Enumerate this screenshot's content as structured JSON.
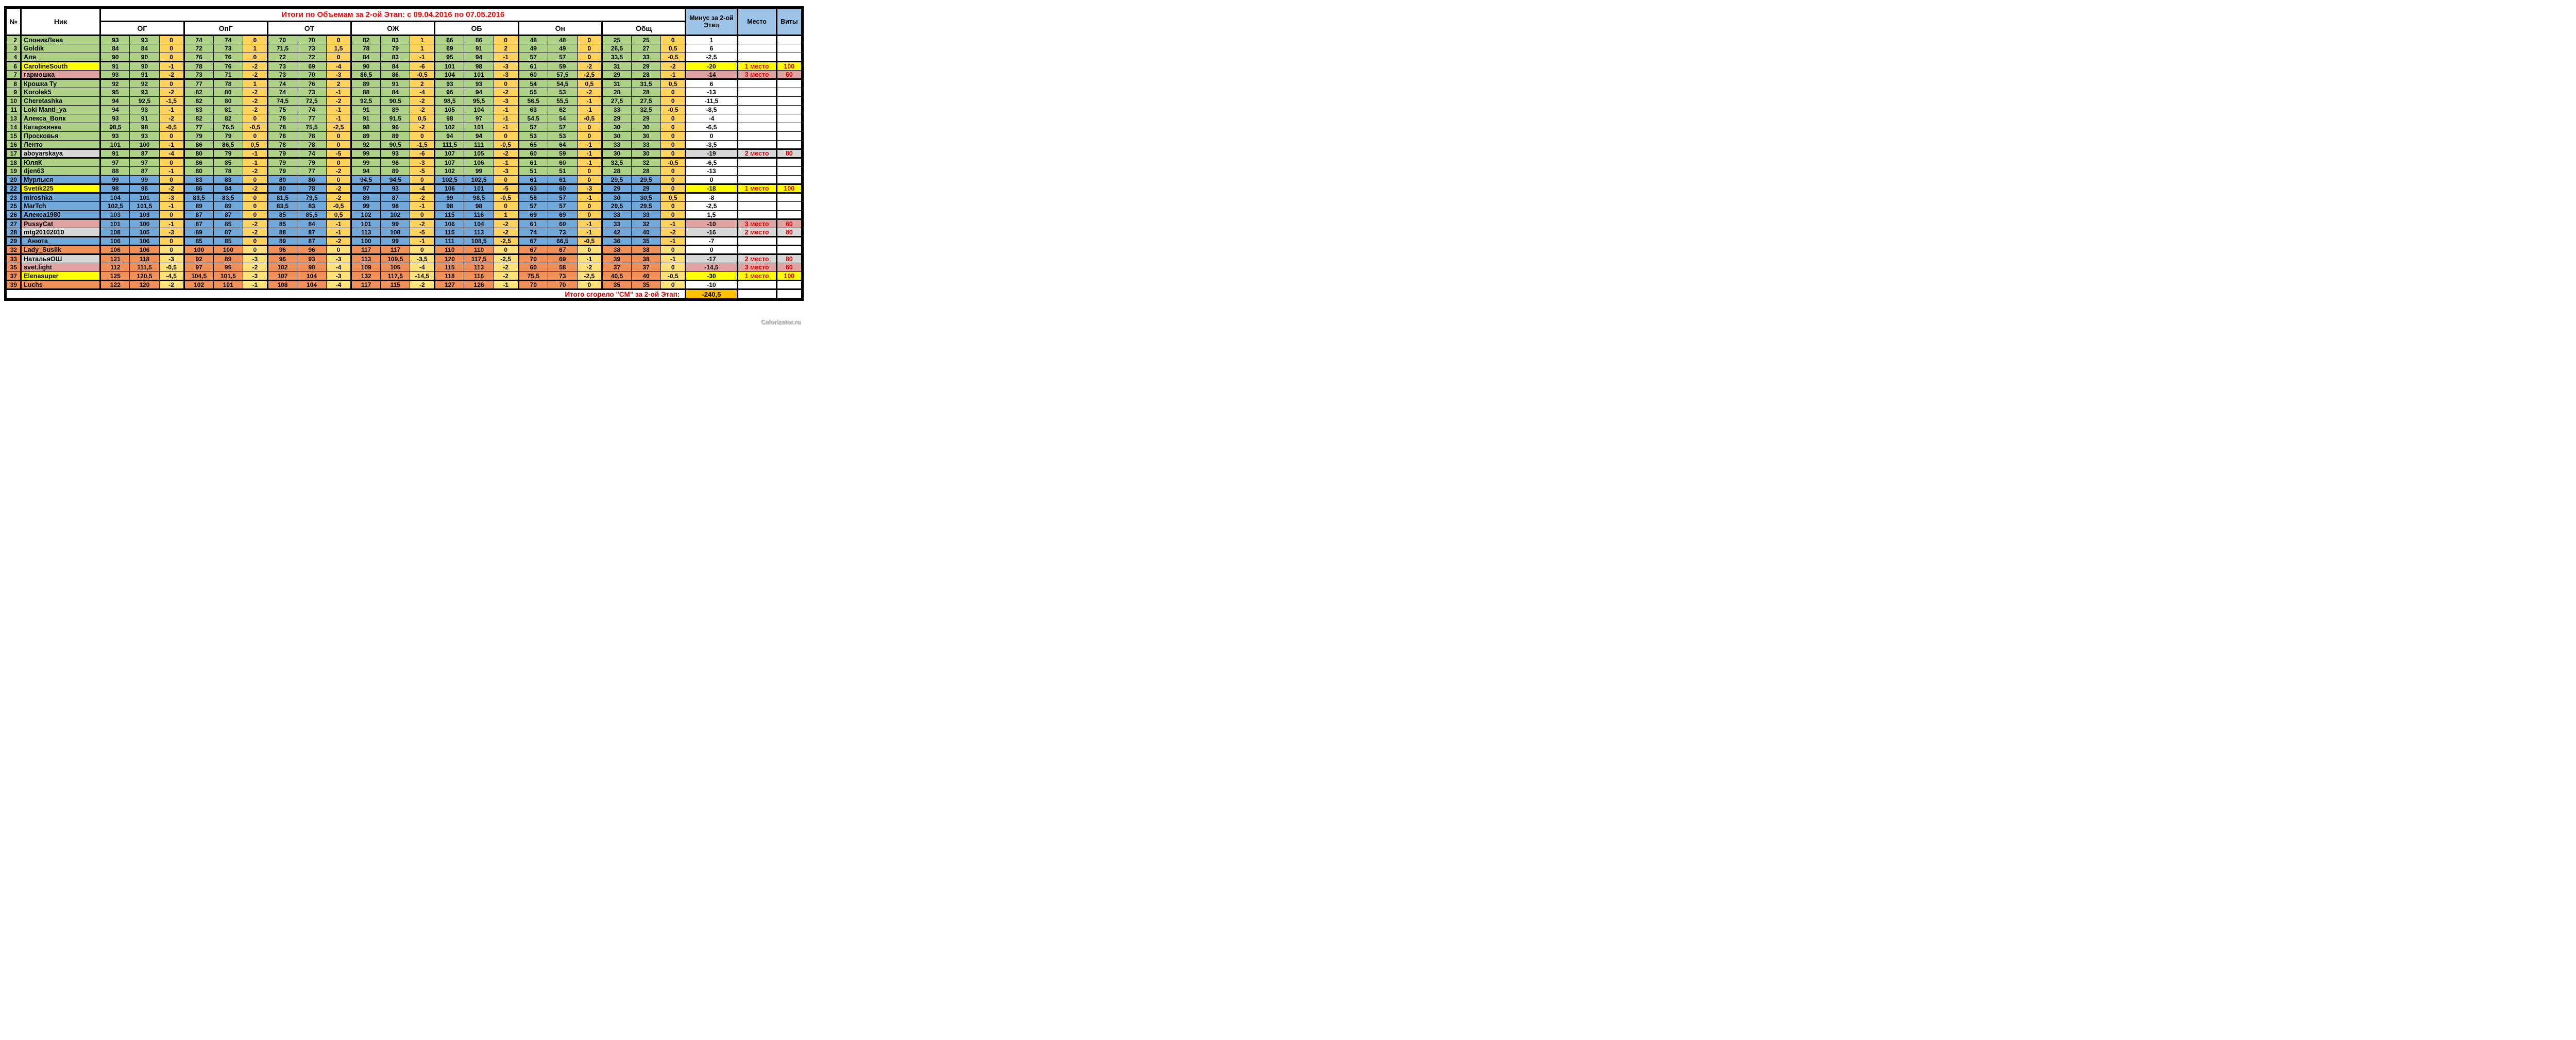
{
  "title": "Итоги по Объемам за 2-ой Этап: с  09.04.2016 по 07.05.2016",
  "columns": {
    "num": "№",
    "nick": "Ник",
    "groups": [
      "ОГ",
      "ОпГ",
      "ОТ",
      "ОЖ",
      "ОБ",
      "Он",
      "Общ"
    ],
    "minus": "Минус за 2-ой Этап",
    "place": "Место",
    "vity": "Виты"
  },
  "colors": {
    "band_green": "#ADD285",
    "band_blue": "#72A9DB",
    "band_orange": "#F1915A",
    "diff_yellow": "#FFD35C",
    "highlight_yellow": "#FFFF00",
    "highlight_pink": "#E2A3A3",
    "highlight_gray": "#D8D8D8",
    "header_blue": "#9DC3E6",
    "title_red": "#FF0000",
    "place_red": "#DD0000",
    "total_orange": "#FFC000"
  },
  "rows": [
    {
      "num": "2",
      "nick": "СлоникЛена",
      "band": "green",
      "hatch": 0,
      "thick": false,
      "v": [
        "93",
        "93",
        "0",
        "74",
        "74",
        "0",
        "70",
        "70",
        "0",
        "82",
        "83",
        "1",
        "86",
        "86",
        "0",
        "48",
        "48",
        "0",
        "25",
        "25",
        "0"
      ],
      "minus": "1",
      "minusbg": "",
      "place": "",
      "vity": ""
    },
    {
      "num": "3",
      "nick": "Goldik",
      "band": "green",
      "hatch": 2,
      "thick": false,
      "v": [
        "84",
        "84",
        "0",
        "72",
        "73",
        "1",
        "71,5",
        "73",
        "1,5",
        "78",
        "79",
        "1",
        "89",
        "91",
        "2",
        "49",
        "49",
        "0",
        "26,5",
        "27",
        "0,5"
      ],
      "minus": "6",
      "minusbg": "",
      "place": "",
      "vity": ""
    },
    {
      "num": "4",
      "nick": "Аля_",
      "band": "green",
      "hatch": 0,
      "thick": true,
      "v": [
        "90",
        "90",
        "0",
        "76",
        "76",
        "0",
        "72",
        "72",
        "0",
        "84",
        "83",
        "-1",
        "95",
        "94",
        "-1",
        "57",
        "57",
        "0",
        "33,5",
        "33",
        "-0,5"
      ],
      "minus": "-2,5",
      "minusbg": "",
      "place": "",
      "vity": ""
    },
    {
      "num": "6",
      "nick": "CarolineSouth",
      "band": "green",
      "nickbg": "yellow",
      "hatch": 2,
      "thick": false,
      "v": [
        "91",
        "90",
        "-1",
        "78",
        "76",
        "-2",
        "73",
        "69",
        "-4",
        "90",
        "84",
        "-6",
        "101",
        "98",
        "-3",
        "61",
        "59",
        "-2",
        "31",
        "29",
        "-2"
      ],
      "minus": "-20",
      "minusbg": "yellow",
      "place": "1 место",
      "vity": "100"
    },
    {
      "num": "7",
      "nick": "гармошка",
      "band": "green",
      "nickbg": "pink",
      "hatch": 0,
      "thick": true,
      "v": [
        "93",
        "91",
        "-2",
        "73",
        "71",
        "-2",
        "73",
        "70",
        "-3",
        "86,5",
        "86",
        "-0,5",
        "104",
        "101",
        "-3",
        "60",
        "57,5",
        "-2,5",
        "29",
        "28",
        "-1"
      ],
      "minus": "-14",
      "minusbg": "pink",
      "place": "3 место",
      "vity": "60"
    },
    {
      "num": "8",
      "nick": "Крошка Ту",
      "band": "green",
      "hatch": 0,
      "thick": false,
      "v": [
        "92",
        "92",
        "0",
        "77",
        "78",
        "1",
        "74",
        "76",
        "2",
        "89",
        "91",
        "2",
        "93",
        "93",
        "0",
        "54",
        "54,5",
        "0,5",
        "31",
        "31,5",
        "0,5"
      ],
      "minus": "6",
      "minusbg": "",
      "place": "",
      "vity": ""
    },
    {
      "num": "9",
      "nick": "Korolek5",
      "band": "green",
      "hatch": 0,
      "thick": false,
      "v": [
        "95",
        "93",
        "-2",
        "82",
        "80",
        "-2",
        "74",
        "73",
        "-1",
        "88",
        "84",
        "-4",
        "96",
        "94",
        "-2",
        "55",
        "53",
        "-2",
        "28",
        "28",
        "0"
      ],
      "minus": "-13",
      "minusbg": "",
      "place": "",
      "vity": ""
    },
    {
      "num": "10",
      "nick": "Cheretashka",
      "band": "green",
      "hatch": 0,
      "thick": false,
      "v": [
        "94",
        "92,5",
        "-1,5",
        "82",
        "80",
        "-2",
        "74,5",
        "72,5",
        "-2",
        "92,5",
        "90,5",
        "-2",
        "98,5",
        "95,5",
        "-3",
        "56,5",
        "55,5",
        "-1",
        "27,5",
        "27,5",
        "0"
      ],
      "minus": "-11,5",
      "minusbg": "",
      "place": "",
      "vity": ""
    },
    {
      "num": "11",
      "nick": "Loki Manti_ya",
      "band": "green",
      "hatch": 0,
      "thick": false,
      "v": [
        "94",
        "93",
        "-1",
        "83",
        "81",
        "-2",
        "75",
        "74",
        "-1",
        "91",
        "89",
        "-2",
        "105",
        "104",
        "-1",
        "63",
        "62",
        "-1",
        "33",
        "32,5",
        "-0,5"
      ],
      "minus": "-8,5",
      "minusbg": "",
      "place": "",
      "vity": ""
    },
    {
      "num": "13",
      "nick": "Алекса_Волк",
      "band": "green",
      "hatch": 0,
      "thick": false,
      "v": [
        "93",
        "91",
        "-2",
        "82",
        "82",
        "0",
        "78",
        "77",
        "-1",
        "91",
        "91,5",
        "0,5",
        "98",
        "97",
        "-1",
        "54,5",
        "54",
        "-0,5",
        "29",
        "29",
        "0"
      ],
      "minus": "-4",
      "minusbg": "",
      "place": "",
      "vity": ""
    },
    {
      "num": "14",
      "nick": "Катаржинка",
      "band": "green",
      "hatch": 0,
      "thick": false,
      "v": [
        "98,5",
        "98",
        "-0,5",
        "77",
        "76,5",
        "-0,5",
        "78",
        "75,5",
        "-2,5",
        "98",
        "96",
        "-2",
        "102",
        "101",
        "-1",
        "57",
        "57",
        "0",
        "30",
        "30",
        "0"
      ],
      "minus": "-6,5",
      "minusbg": "",
      "place": "",
      "vity": ""
    },
    {
      "num": "15",
      "nick": "Просковья",
      "band": "green",
      "hatch": 2,
      "thick": false,
      "v": [
        "93",
        "93",
        "0",
        "79",
        "79",
        "0",
        "78",
        "78",
        "0",
        "89",
        "89",
        "0",
        "94",
        "94",
        "0",
        "53",
        "53",
        "0",
        "30",
        "30",
        "0"
      ],
      "minus": "0",
      "minusbg": "",
      "place": "",
      "vity": ""
    },
    {
      "num": "16",
      "nick": "Ленто",
      "band": "green",
      "hatch": 0,
      "thick": true,
      "v": [
        "101",
        "100",
        "-1",
        "86",
        "86,5",
        "0,5",
        "78",
        "78",
        "0",
        "92",
        "90,5",
        "-1,5",
        "111,5",
        "111",
        "-0,5",
        "65",
        "64",
        "-1",
        "33",
        "33",
        "0"
      ],
      "minus": "-3,5",
      "minusbg": "",
      "place": "",
      "vity": ""
    },
    {
      "num": "17",
      "nick": "aboyarskaya",
      "band": "green",
      "nickbg": "gray",
      "hatch": 1,
      "thick": true,
      "v": [
        "91",
        "87",
        "-4",
        "80",
        "79",
        "-1",
        "79",
        "74",
        "-5",
        "99",
        "93",
        "-6",
        "107",
        "105",
        "-2",
        "60",
        "59",
        "-1",
        "30",
        "30",
        "0"
      ],
      "minus": "-19",
      "minusbg": "gray",
      "place": "2 место",
      "vity": "80"
    },
    {
      "num": "18",
      "nick": "ЮляК",
      "band": "green",
      "hatch": 0,
      "thick": false,
      "v": [
        "97",
        "97",
        "0",
        "86",
        "85",
        "-1",
        "79",
        "79",
        "0",
        "99",
        "96",
        "-3",
        "107",
        "106",
        "-1",
        "61",
        "60",
        "-1",
        "32,5",
        "32",
        "-0,5"
      ],
      "minus": "-6,5",
      "minusbg": "",
      "place": "",
      "vity": ""
    },
    {
      "num": "19",
      "nick": "djen63",
      "band": "green",
      "hatch": 0,
      "thick": false,
      "v": [
        "88",
        "87",
        "-1",
        "80",
        "78",
        "-2",
        "79",
        "77",
        "-2",
        "94",
        "89",
        "-5",
        "102",
        "99",
        "-3",
        "51",
        "51",
        "0",
        "28",
        "28",
        "0"
      ],
      "minus": "-13",
      "minusbg": "",
      "place": "",
      "vity": ""
    },
    {
      "num": "20",
      "nick": "Мурлыся",
      "band": "blue",
      "hatch": 0,
      "thick": true,
      "v": [
        "99",
        "99",
        "0",
        "83",
        "83",
        "0",
        "80",
        "80",
        "0",
        "94,5",
        "94,5",
        "0",
        "102,5",
        "102,5",
        "0",
        "61",
        "61",
        "0",
        "29,5",
        "29,5",
        "0"
      ],
      "minus": "0",
      "minusbg": "",
      "place": "",
      "vity": ""
    },
    {
      "num": "22",
      "nick": "Svetik225",
      "band": "blue",
      "nickbg": "yellow",
      "hatch": 0,
      "thick": true,
      "v": [
        "98",
        "96",
        "-2",
        "86",
        "84",
        "-2",
        "80",
        "78",
        "-2",
        "97",
        "93",
        "-4",
        "106",
        "101",
        "-5",
        "63",
        "60",
        "-3",
        "29",
        "29",
        "0"
      ],
      "minus": "-18",
      "minusbg": "yellow",
      "place": "1 место",
      "vity": "100"
    },
    {
      "num": "23",
      "nick": "miroshka",
      "band": "blue",
      "hatch": 0,
      "thick": false,
      "v": [
        "104",
        "101",
        "-3",
        "83,5",
        "83,5",
        "0",
        "81,5",
        "79,5",
        "-2",
        "89",
        "87",
        "-2",
        "99",
        "98,5",
        "-0,5",
        "58",
        "57",
        "-1",
        "30",
        "30,5",
        "0,5"
      ],
      "minus": "-8",
      "minusbg": "",
      "place": "",
      "vity": ""
    },
    {
      "num": "25",
      "nick": "MarTch",
      "band": "blue",
      "hatch": 0,
      "thick": false,
      "v": [
        "102,5",
        "101,5",
        "-1",
        "89",
        "89",
        "0",
        "83,5",
        "83",
        "-0,5",
        "99",
        "98",
        "-1",
        "98",
        "98",
        "0",
        "57",
        "57",
        "0",
        "29,5",
        "29,5",
        "0"
      ],
      "minus": "-2,5",
      "minusbg": "",
      "place": "",
      "vity": ""
    },
    {
      "num": "26",
      "nick": "Алекса1980",
      "band": "blue",
      "hatch": 0,
      "thick": true,
      "v": [
        "103",
        "103",
        "0",
        "87",
        "87",
        "0",
        "85",
        "85,5",
        "0,5",
        "102",
        "102",
        "0",
        "115",
        "116",
        "1",
        "69",
        "69",
        "0",
        "33",
        "33",
        "0"
      ],
      "minus": "1,5",
      "minusbg": "",
      "place": "",
      "vity": ""
    },
    {
      "num": "27",
      "nick": "PussyCat",
      "band": "blue",
      "nickbg": "pink",
      "hatch": 0,
      "thick": false,
      "v": [
        "101",
        "100",
        "-1",
        "87",
        "85",
        "-2",
        "85",
        "84",
        "-1",
        "101",
        "99",
        "-2",
        "106",
        "104",
        "-2",
        "61",
        "60",
        "-1",
        "33",
        "32",
        "-1"
      ],
      "minus": "-10",
      "minusbg": "pink",
      "place": "3 место",
      "vity": "60"
    },
    {
      "num": "28",
      "nick": "mtg20102010",
      "band": "blue",
      "nickbg": "gray",
      "hatch": 0,
      "thick": true,
      "v": [
        "108",
        "105",
        "-3",
        "89",
        "87",
        "-2",
        "88",
        "87",
        "-1",
        "113",
        "108",
        "-5",
        "115",
        "113",
        "-2",
        "74",
        "73",
        "-1",
        "42",
        "40",
        "-2"
      ],
      "minus": "-16",
      "minusbg": "gray",
      "place": "2 место",
      "vity": "80"
    },
    {
      "num": "29",
      "nick": "_Анюта_",
      "band": "blue",
      "hatch": 0,
      "thick": true,
      "v": [
        "106",
        "106",
        "0",
        "85",
        "85",
        "0",
        "89",
        "87",
        "-2",
        "100",
        "99",
        "-1",
        "111",
        "108,5",
        "-2,5",
        "67",
        "66,5",
        "-0,5",
        "36",
        "35",
        "-1"
      ],
      "minus": "-7",
      "minusbg": "",
      "place": "",
      "vity": ""
    },
    {
      "num": "32",
      "nick": "Lady_Suslik",
      "band": "orange",
      "hatch": 0,
      "thick": true,
      "v": [
        "106",
        "106",
        "0",
        "100",
        "100",
        "0",
        "96",
        "96",
        "0",
        "117",
        "117",
        "0",
        "110",
        "110",
        "0",
        "67",
        "67",
        "0",
        "38",
        "38",
        "0"
      ],
      "minus": "0",
      "minusbg": "",
      "place": "",
      "vity": ""
    },
    {
      "num": "33",
      "nick": "НатальяОШ",
      "band": "orange",
      "nickbg": "gray",
      "hatch": 0,
      "thick": false,
      "v": [
        "121",
        "118",
        "-3",
        "92",
        "89",
        "-3",
        "96",
        "93",
        "-3",
        "113",
        "109,5",
        "-3,5",
        "120",
        "117,5",
        "-2,5",
        "70",
        "69",
        "-1",
        "39",
        "38",
        "-1"
      ],
      "minus": "-17",
      "minusbg": "gray",
      "place": "2 место",
      "vity": "80"
    },
    {
      "num": "35",
      "nick": "svet.light",
      "band": "orange",
      "nickbg": "pink",
      "hatch": 0,
      "thick": false,
      "v": [
        "112",
        "111,5",
        "-0,5",
        "97",
        "95",
        "-2",
        "102",
        "98",
        "-4",
        "109",
        "105",
        "-4",
        "115",
        "113",
        "-2",
        "60",
        "58",
        "-2",
        "37",
        "37",
        "0"
      ],
      "minus": "-14,5",
      "minusbg": "pink",
      "place": "3 место",
      "vity": "60"
    },
    {
      "num": "37",
      "nick": "Elenasuper",
      "band": "orange",
      "nickbg": "yellow",
      "hatch": 0,
      "thick": true,
      "v": [
        "125",
        "120,5",
        "-4,5",
        "104,5",
        "101,5",
        "-3",
        "107",
        "104",
        "-3",
        "132",
        "117,5",
        "-14,5",
        "118",
        "116",
        "-2",
        "75,5",
        "73",
        "-2,5",
        "40,5",
        "40",
        "-0,5"
      ],
      "minus": "-30",
      "minusbg": "yellow",
      "place": "1 место",
      "vity": "100"
    },
    {
      "num": "39",
      "nick": "Luchs",
      "band": "orange",
      "hatch": 0,
      "thick": false,
      "v": [
        "122",
        "120",
        "-2",
        "102",
        "101",
        "-1",
        "108",
        "104",
        "-4",
        "117",
        "115",
        "-2",
        "127",
        "126",
        "-1",
        "70",
        "70",
        "0",
        "35",
        "35",
        "0"
      ],
      "minus": "-10",
      "minusbg": "",
      "place": "",
      "vity": ""
    }
  ],
  "footer": {
    "label": "Итого сгорело \"СМ\" за 2-ой Этап:",
    "value": "-240,5"
  },
  "watermark": "Calorizator.ru"
}
